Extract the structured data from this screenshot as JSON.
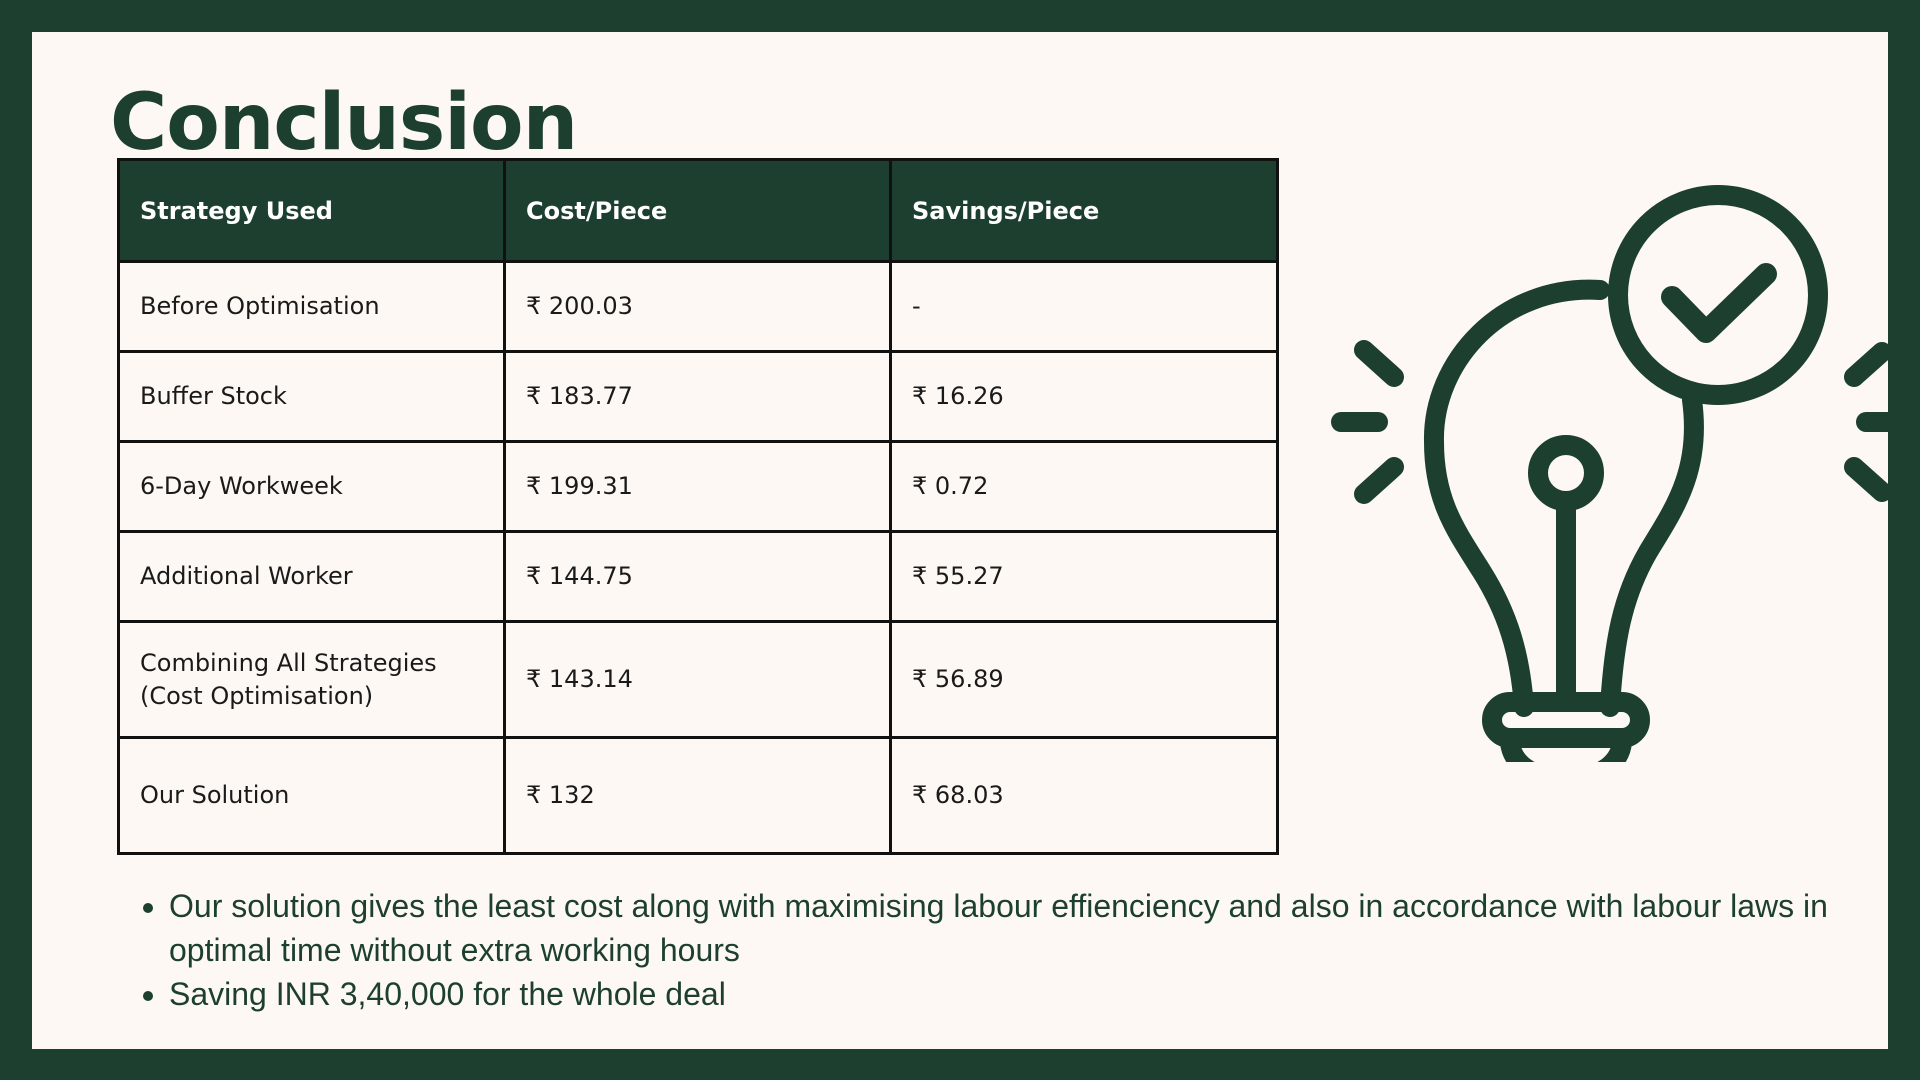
{
  "title": "Conclusion",
  "table": {
    "headers": [
      "Strategy Used",
      "Cost/Piece",
      "Savings/Piece"
    ],
    "rows": [
      [
        "Before Optimisation",
        "₹ 200.03",
        "-"
      ],
      [
        "Buffer Stock",
        "₹ 183.77",
        "₹ 16.26"
      ],
      [
        "6-Day Workweek",
        "₹ 199.31",
        "₹ 0.72"
      ],
      [
        "Additional Worker",
        "₹ 144.75",
        "₹ 55.27"
      ],
      [
        "Combining All Strategies (Cost Optimisation)",
        "₹ 143.14",
        "₹ 56.89"
      ],
      [
        "Our Solution",
        "₹ 132",
        "₹ 68.03"
      ]
    ]
  },
  "bullets": [
    "Our solution gives the least cost along with maximising labour effienciency and also in accordance with labour laws in optimal time without extra working hours",
    "Saving INR 3,40,000 for the whole deal"
  ],
  "icon": "lightbulb-check-icon",
  "colors": {
    "frame": "#1c3f2f",
    "background": "#fdf8f3",
    "header": "#1c3f2f"
  }
}
